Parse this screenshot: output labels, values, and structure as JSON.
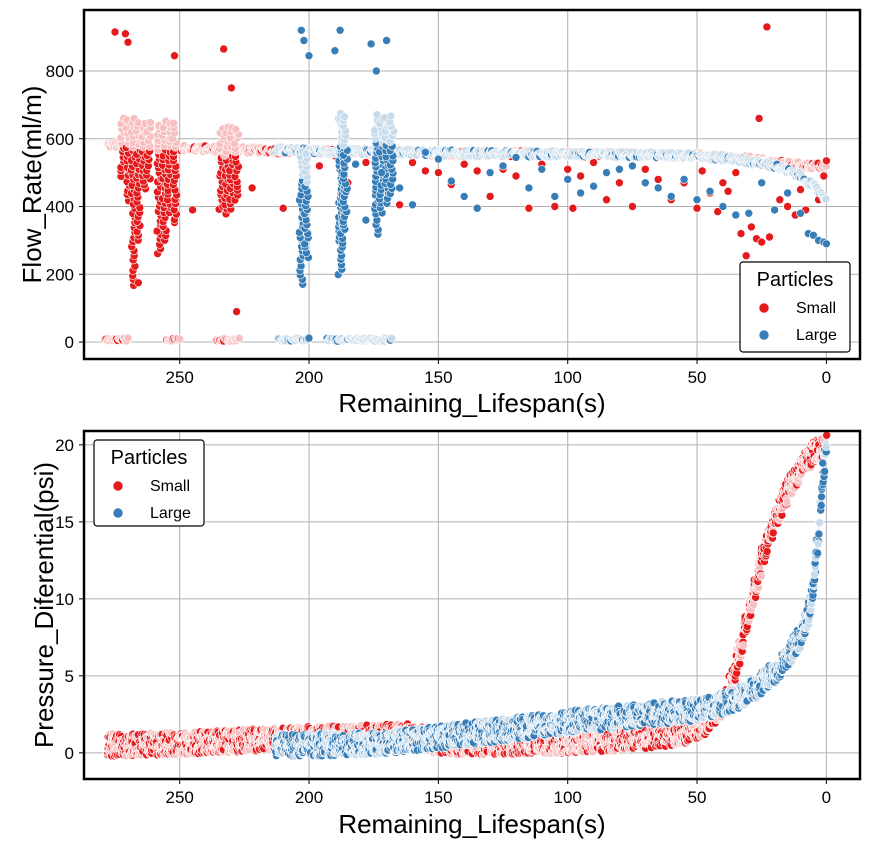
{
  "colors": {
    "small": "#e41a1c",
    "large": "#377eb8",
    "grid": "#b0b0b0",
    "frame": "#000000"
  },
  "chart_data": [
    {
      "type": "scatter",
      "xlabel": "Remaining_Lifespan(s)",
      "ylabel": "Flow_Rate(ml/m)",
      "xlim": [
        287,
        -13
      ],
      "ylim": [
        -50,
        980
      ],
      "x_inverted": true,
      "xticks": [
        250,
        200,
        150,
        100,
        50,
        0
      ],
      "yticks": [
        0,
        200,
        400,
        600,
        800
      ],
      "grid": true,
      "legend": {
        "title": "Particles",
        "placement": "lower-right",
        "entries": [
          "Small",
          "Large"
        ]
      },
      "series": [
        {
          "name": "Small",
          "color": "#e41a1c",
          "main_band": [
            [
              278,
              583
            ],
            [
              260,
              575
            ],
            [
              240,
              570
            ],
            [
              220,
              566
            ],
            [
              200,
              563
            ],
            [
              150,
              558
            ],
            [
              100,
              555
            ],
            [
              50,
              550
            ],
            [
              30,
              540
            ],
            [
              15,
              525
            ],
            [
              5,
              520
            ],
            [
              0,
              520
            ]
          ],
          "zero_band": [
            [
              279,
              270
            ],
            [
              255,
              250
            ],
            [
              236,
              227
            ]
          ],
          "vertical_clusters": [
            [
              272,
              490,
              670
            ],
            [
              270,
              420,
              665
            ],
            [
              268,
              170,
              660
            ],
            [
              266,
              300,
              660
            ],
            [
              264,
              450,
              655
            ],
            [
              262,
              480,
              655
            ],
            [
              258,
              260,
              650
            ],
            [
              256,
              300,
              660
            ],
            [
              254,
              380,
              655
            ],
            [
              252,
              350,
              650
            ],
            [
              234,
              390,
              640
            ],
            [
              232,
              380,
              635
            ],
            [
              230,
              395,
              645
            ],
            [
              228,
              420,
              640
            ]
          ],
          "outliers": [
            [
              275,
              915
            ],
            [
              271,
              910
            ],
            [
              270,
              885
            ],
            [
              252,
              845
            ],
            [
              233,
              865
            ],
            [
              230,
              750
            ],
            [
              23,
              930
            ],
            [
              26,
              660
            ],
            [
              228,
              90
            ],
            [
              266,
              175
            ],
            [
              245,
              390
            ],
            [
              222,
              455
            ],
            [
              210,
              395
            ],
            [
              196,
              520
            ],
            [
              190,
              550
            ],
            [
              185,
              470
            ],
            [
              178,
              530
            ],
            [
              172,
              460
            ],
            [
              165,
              405
            ],
            [
              160,
              530
            ],
            [
              155,
              505
            ],
            [
              150,
              500
            ],
            [
              145,
              465
            ],
            [
              140,
              525
            ],
            [
              135,
              505
            ],
            [
              130,
              430
            ],
            [
              125,
              510
            ],
            [
              120,
              490
            ],
            [
              115,
              395
            ],
            [
              110,
              525
            ],
            [
              105,
              400
            ],
            [
              100,
              510
            ],
            [
              98,
              395
            ],
            [
              95,
              490
            ],
            [
              90,
              530
            ],
            [
              85,
              420
            ],
            [
              80,
              470
            ],
            [
              75,
              400
            ],
            [
              70,
              510
            ],
            [
              65,
              480
            ],
            [
              60,
              420
            ],
            [
              55,
              470
            ],
            [
              50,
              395
            ],
            [
              48,
              505
            ],
            [
              45,
              440
            ],
            [
              42,
              385
            ],
            [
              40,
              470
            ],
            [
              38,
              445
            ],
            [
              35,
              500
            ],
            [
              33,
              320
            ],
            [
              31,
              255
            ],
            [
              29,
              340
            ],
            [
              27,
              305
            ],
            [
              25,
              295
            ],
            [
              22,
              310
            ],
            [
              18,
              420
            ],
            [
              15,
              400
            ],
            [
              12,
              375
            ],
            [
              10,
              450
            ],
            [
              8,
              390
            ],
            [
              5,
              470
            ],
            [
              3,
              420
            ],
            [
              1,
              490
            ],
            [
              0,
              535
            ]
          ]
        },
        {
          "name": "Large",
          "color": "#377eb8",
          "main_band": [
            [
              213,
              568
            ],
            [
              200,
              563
            ],
            [
              175,
              562
            ],
            [
              150,
              558
            ],
            [
              125,
              556
            ],
            [
              100,
              555
            ],
            [
              75,
              553
            ],
            [
              50,
              550
            ],
            [
              35,
              540
            ],
            [
              20,
              520
            ],
            [
              10,
              490
            ],
            [
              5,
              460
            ],
            [
              2,
              440
            ],
            [
              0,
              420
            ]
          ],
          "zero_band": [
            [
              212,
              200
            ],
            [
              193,
              174
            ],
            [
              181,
              168
            ]
          ],
          "vertical_clusters": [
            [
              203,
              170,
              570
            ],
            [
              201,
              250,
              560
            ],
            [
              188,
              200,
              680
            ],
            [
              187,
              280,
              665
            ],
            [
              186,
              330,
              670
            ],
            [
              174,
              320,
              680
            ],
            [
              172,
              380,
              670
            ],
            [
              170,
              410,
              670
            ],
            [
              168,
              440,
              670
            ]
          ],
          "outliers": [
            [
              203,
              920
            ],
            [
              202,
              890
            ],
            [
              200,
              845
            ],
            [
              190,
              860
            ],
            [
              188,
              920
            ],
            [
              176,
              880
            ],
            [
              170,
              890
            ],
            [
              174,
              800
            ],
            [
              182,
              525
            ],
            [
              178,
              360
            ],
            [
              172,
              500
            ],
            [
              165,
              455
            ],
            [
              160,
              405
            ],
            [
              155,
              560
            ],
            [
              150,
              540
            ],
            [
              145,
              475
            ],
            [
              140,
              430
            ],
            [
              135,
              395
            ],
            [
              130,
              500
            ],
            [
              125,
              520
            ],
            [
              120,
              545
            ],
            [
              115,
              455
            ],
            [
              110,
              510
            ],
            [
              105,
              430
            ],
            [
              100,
              480
            ],
            [
              95,
              440
            ],
            [
              90,
              460
            ],
            [
              85,
              500
            ],
            [
              80,
              510
            ],
            [
              75,
              520
            ],
            [
              70,
              470
            ],
            [
              65,
              455
            ],
            [
              60,
              430
            ],
            [
              55,
              480
            ],
            [
              50,
              420
            ],
            [
              45,
              445
            ],
            [
              40,
              400
            ],
            [
              35,
              375
            ],
            [
              30,
              380
            ],
            [
              25,
              470
            ],
            [
              20,
              390
            ],
            [
              15,
              440
            ],
            [
              10,
              380
            ],
            [
              7,
              320
            ],
            [
              5,
              315
            ],
            [
              3,
              300
            ],
            [
              1,
              295
            ],
            [
              0,
              290
            ]
          ]
        }
      ]
    },
    {
      "type": "scatter",
      "xlabel": "Remaining_Lifespan(s)",
      "ylabel": "Pressure_Diferential(psi)",
      "xlim": [
        287,
        -13
      ],
      "ylim": [
        -1.7,
        20.9
      ],
      "x_inverted": true,
      "xticks": [
        250,
        200,
        150,
        100,
        50,
        0
      ],
      "yticks": [
        0,
        5,
        10,
        15,
        20
      ],
      "grid": true,
      "legend": {
        "title": "Particles",
        "placement": "upper-left",
        "entries": [
          "Small",
          "Large"
        ]
      },
      "series": [
        {
          "name": "Small",
          "color": "#e41a1c",
          "curve": [
            [
              278,
              0.5
            ],
            [
              250,
              0.6
            ],
            [
              225,
              0.8
            ],
            [
              200,
              1.0
            ],
            [
              175,
              1.1
            ],
            [
              160,
              1.2
            ],
            [
              150,
              0.6
            ],
            [
              125,
              0.6
            ],
            [
              100,
              0.7
            ],
            [
              75,
              0.9
            ],
            [
              55,
              1.3
            ],
            [
              45,
              2.0
            ],
            [
              40,
              3.0
            ],
            [
              35,
              5.5
            ],
            [
              30,
              9.0
            ],
            [
              25,
              12.5
            ],
            [
              20,
              15.0
            ],
            [
              15,
              17.0
            ],
            [
              10,
              18.5
            ],
            [
              5,
              19.5
            ],
            [
              0,
              20.0
            ]
          ],
          "spread": 0.9
        },
        {
          "name": "Large",
          "color": "#377eb8",
          "curve": [
            [
              213,
              0.5
            ],
            [
              200,
              0.5
            ],
            [
              175,
              0.6
            ],
            [
              150,
              1.0
            ],
            [
              125,
              1.5
            ],
            [
              100,
              2.0
            ],
            [
              75,
              2.4
            ],
            [
              50,
              2.8
            ],
            [
              40,
              3.2
            ],
            [
              30,
              3.9
            ],
            [
              20,
              5.2
            ],
            [
              15,
              6.3
            ],
            [
              10,
              7.5
            ],
            [
              7,
              9.0
            ],
            [
              5,
              11.0
            ],
            [
              3,
              14.0
            ],
            [
              2,
              16.5
            ],
            [
              1,
              18.5
            ],
            [
              0,
              20.0
            ]
          ],
          "spread": 0.9
        }
      ]
    }
  ]
}
